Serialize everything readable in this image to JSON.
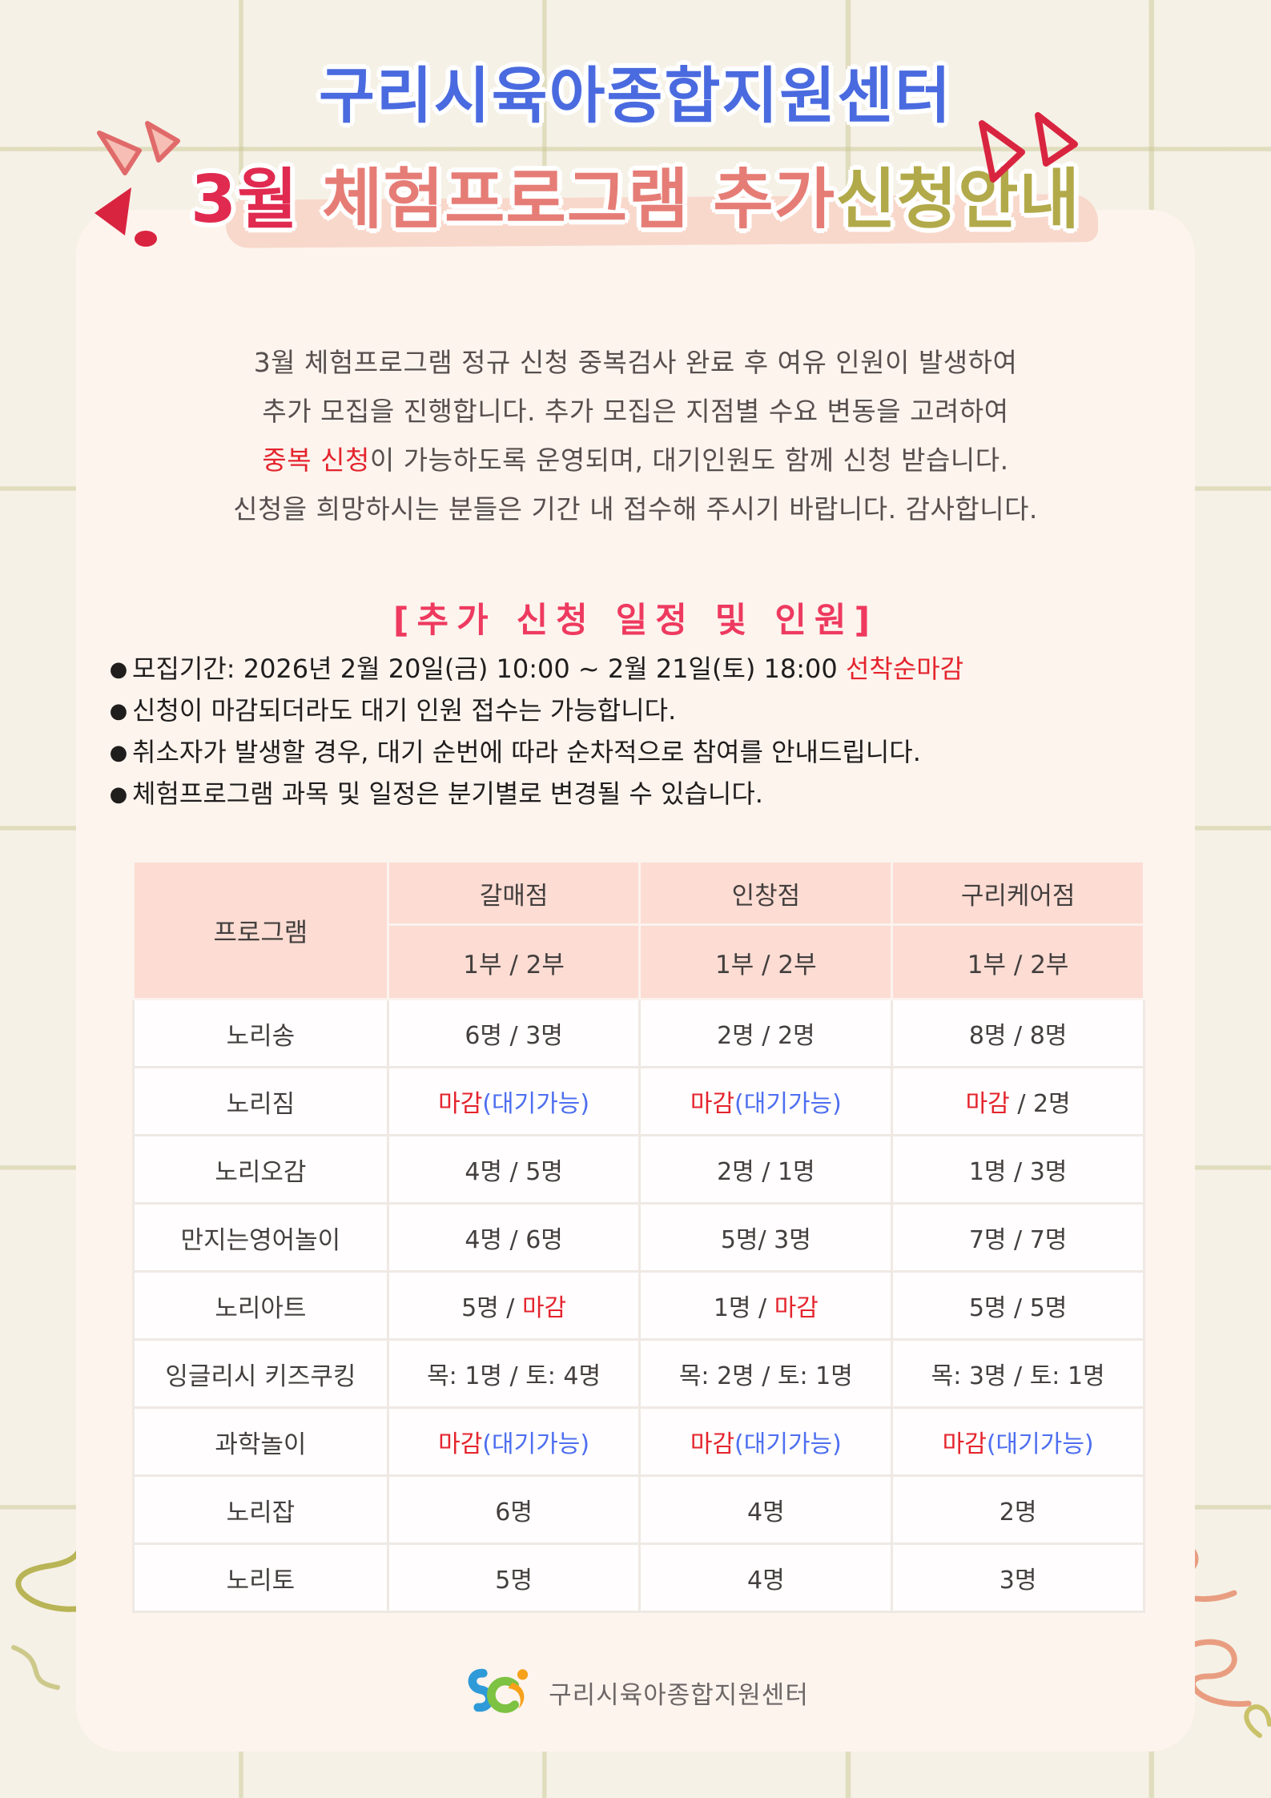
{
  "colors": {
    "page_bg": "#f5f1e6",
    "panel_bg": "#fdf4ee",
    "title_blue": "#4a6adf",
    "title_crimson": "#e02a50",
    "title_salmon": "#e57d76",
    "title_olive": "#b2aa4a",
    "heading_red": "#ee3a5f",
    "status_closed_red": "#e4242d",
    "status_wait_blue": "#4d6ef0",
    "table_header_pink": "#fcdcd3"
  },
  "title": {
    "line1": "구리시육아종합지원센터",
    "line2": [
      {
        "t": "3월 ",
        "c": "crimson"
      },
      {
        "t": "체험프로그램 ",
        "c": "salmon"
      },
      {
        "t": "추가",
        "c": "salmon"
      },
      {
        "t": "신청안내",
        "c": "olive"
      }
    ]
  },
  "intro": {
    "lines": [
      [
        {
          "t": "3월 체험프로그램 정규 신청 중복검사 완료 후 여유 인원이 발생하여",
          "c": "dark"
        }
      ],
      [
        {
          "t": "추가 모집을 진행합니다. 추가 모집은 지점별 수요 변동을 고려하여",
          "c": "dark"
        }
      ],
      [
        {
          "t": "중복 신청",
          "c": "red"
        },
        {
          "t": "이 가능하도록 운영되며, 대기인원도 함께 신청 받습니다.",
          "c": "dark"
        }
      ],
      [
        {
          "t": "신청을 희망하시는 분들은 기간 내 접수해 주시기 바랍니다. 감사합니다.",
          "c": "dark"
        }
      ]
    ]
  },
  "section_heading": "[추가 신청 일정 및 인원]",
  "bullets": [
    [
      {
        "t": "모집기간: 2026년 2월 20일(금) 10:00 ~ 2월 21일(토) 18:00 ",
        "c": "dark"
      },
      {
        "t": "선착순마감",
        "c": "red"
      }
    ],
    [
      {
        "t": "신청이 마감되더라도 대기 인원 접수는 가능합니다.",
        "c": "dark"
      }
    ],
    [
      {
        "t": "취소자가 발생할 경우, 대기 순번에 따라 순차적으로 참여를 안내드립니다.",
        "c": "dark"
      }
    ],
    [
      {
        "t": "체험프로그램 과목 및 일정은 분기별로 변경될 수 있습니다.",
        "c": "dark"
      }
    ]
  ],
  "table": {
    "program_header": "프로그램",
    "branch_headers": [
      "갈매점",
      "인창점",
      "구리케어점"
    ],
    "session_header": "1부 / 2부",
    "rows": [
      {
        "program": "노리송",
        "cells": [
          [
            {
              "t": "6명 / 3명",
              "c": "dark"
            }
          ],
          [
            {
              "t": "2명 / 2명",
              "c": "dark"
            }
          ],
          [
            {
              "t": "8명 / 8명",
              "c": "dark"
            }
          ]
        ]
      },
      {
        "program": "노리짐",
        "cells": [
          [
            {
              "t": "마감",
              "c": "red"
            },
            {
              "t": "(대기가능)",
              "c": "blue"
            }
          ],
          [
            {
              "t": "마감",
              "c": "red"
            },
            {
              "t": "(대기가능)",
              "c": "blue"
            }
          ],
          [
            {
              "t": "마감",
              "c": "red"
            },
            {
              "t": " / 2명",
              "c": "dark"
            }
          ]
        ]
      },
      {
        "program": "노리오감",
        "cells": [
          [
            {
              "t": "4명 / 5명",
              "c": "dark"
            }
          ],
          [
            {
              "t": "2명 / 1명",
              "c": "dark"
            }
          ],
          [
            {
              "t": "1명 / 3명",
              "c": "dark"
            }
          ]
        ]
      },
      {
        "program": "만지는영어놀이",
        "cells": [
          [
            {
              "t": "4명 / 6명",
              "c": "dark"
            }
          ],
          [
            {
              "t": "5명/ 3명",
              "c": "dark"
            }
          ],
          [
            {
              "t": "7명 / 7명",
              "c": "dark"
            }
          ]
        ]
      },
      {
        "program": "노리아트",
        "cells": [
          [
            {
              "t": "5명 / ",
              "c": "dark"
            },
            {
              "t": "마감",
              "c": "red"
            }
          ],
          [
            {
              "t": "1명 / ",
              "c": "dark"
            },
            {
              "t": "마감",
              "c": "red"
            }
          ],
          [
            {
              "t": "5명 / 5명",
              "c": "dark"
            }
          ]
        ]
      },
      {
        "program": "잉글리시 키즈쿠킹",
        "cells": [
          [
            {
              "t": "목: 1명 / 토: 4명",
              "c": "dark"
            }
          ],
          [
            {
              "t": "목: 2명 / 토: 1명",
              "c": "dark"
            }
          ],
          [
            {
              "t": "목: 3명 / 토: 1명",
              "c": "dark"
            }
          ]
        ]
      },
      {
        "program": "과학놀이",
        "cells": [
          [
            {
              "t": "마감",
              "c": "red"
            },
            {
              "t": "(대기가능)",
              "c": "blue"
            }
          ],
          [
            {
              "t": "마감",
              "c": "red"
            },
            {
              "t": "(대기가능)",
              "c": "blue"
            }
          ],
          [
            {
              "t": "마감",
              "c": "red"
            },
            {
              "t": "(대기가능)",
              "c": "blue"
            }
          ]
        ]
      },
      {
        "program": "노리잡",
        "cells": [
          [
            {
              "t": "6명",
              "c": "dark"
            }
          ],
          [
            {
              "t": "4명",
              "c": "dark"
            }
          ],
          [
            {
              "t": "2명",
              "c": "dark"
            }
          ]
        ]
      },
      {
        "program": "노리토",
        "cells": [
          [
            {
              "t": "5명",
              "c": "dark"
            }
          ],
          [
            {
              "t": "4명",
              "c": "dark"
            }
          ],
          [
            {
              "t": "3명",
              "c": "dark"
            }
          ]
        ]
      }
    ]
  },
  "footer": {
    "org_name": "구리시육아종합지원센터"
  }
}
